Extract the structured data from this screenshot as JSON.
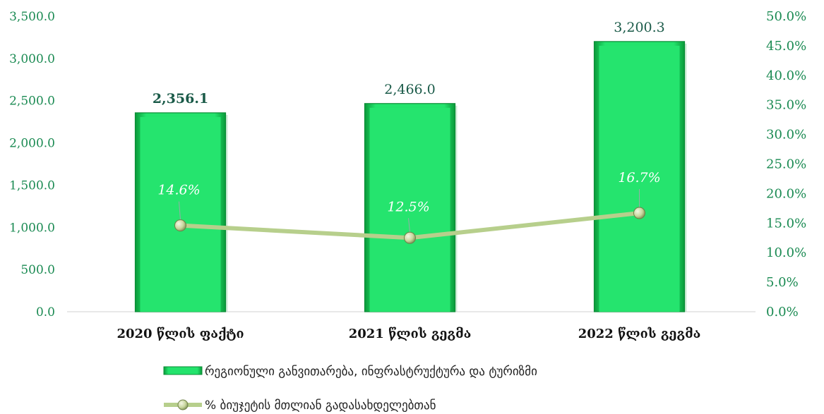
{
  "chart_data": {
    "type": "bar",
    "categories": [
      "2020 წლის ფაქტი",
      "2021  წლის გეგმა",
      "2022 წლის გეგმა"
    ],
    "series": [
      {
        "name": "რეგიონული განვითარება, ინფრასტრუქტურა და ტურიზმი",
        "type": "bar",
        "axis": "left",
        "values": [
          2356.1,
          2466.0,
          3200.3
        ],
        "data_labels": [
          "2,356.1",
          "2,466.0",
          "3,200.3"
        ]
      },
      {
        "name": "% ბიუჯეტის მთლიან გადასახდელებთან",
        "type": "line",
        "axis": "right",
        "values": [
          14.6,
          12.5,
          16.7
        ],
        "data_labels": [
          "14.6%",
          "12.5%",
          "16.7%"
        ]
      }
    ],
    "y_left": {
      "ylim": [
        0,
        3500
      ],
      "ticks": [
        "0.0",
        "500.0",
        "1,000.0",
        "1,500.0",
        "2,000.0",
        "2,500.0",
        "3,000.0",
        "3,500.0"
      ]
    },
    "y_right": {
      "ylim": [
        0,
        50
      ],
      "ticks": [
        "0.0%",
        "5.0%",
        "10.0%",
        "15.0%",
        "20.0%",
        "25.0%",
        "30.0%",
        "35.0%",
        "40.0%",
        "45.0%",
        "50.0%"
      ]
    },
    "legend_position": "bottom",
    "grid": false,
    "colors": {
      "bar": "#22e06a",
      "bar_dark": "#0a9a3a",
      "line": "#b9d18f",
      "marker": "#d6e2b0",
      "axis_text": "#1a8a52"
    }
  }
}
